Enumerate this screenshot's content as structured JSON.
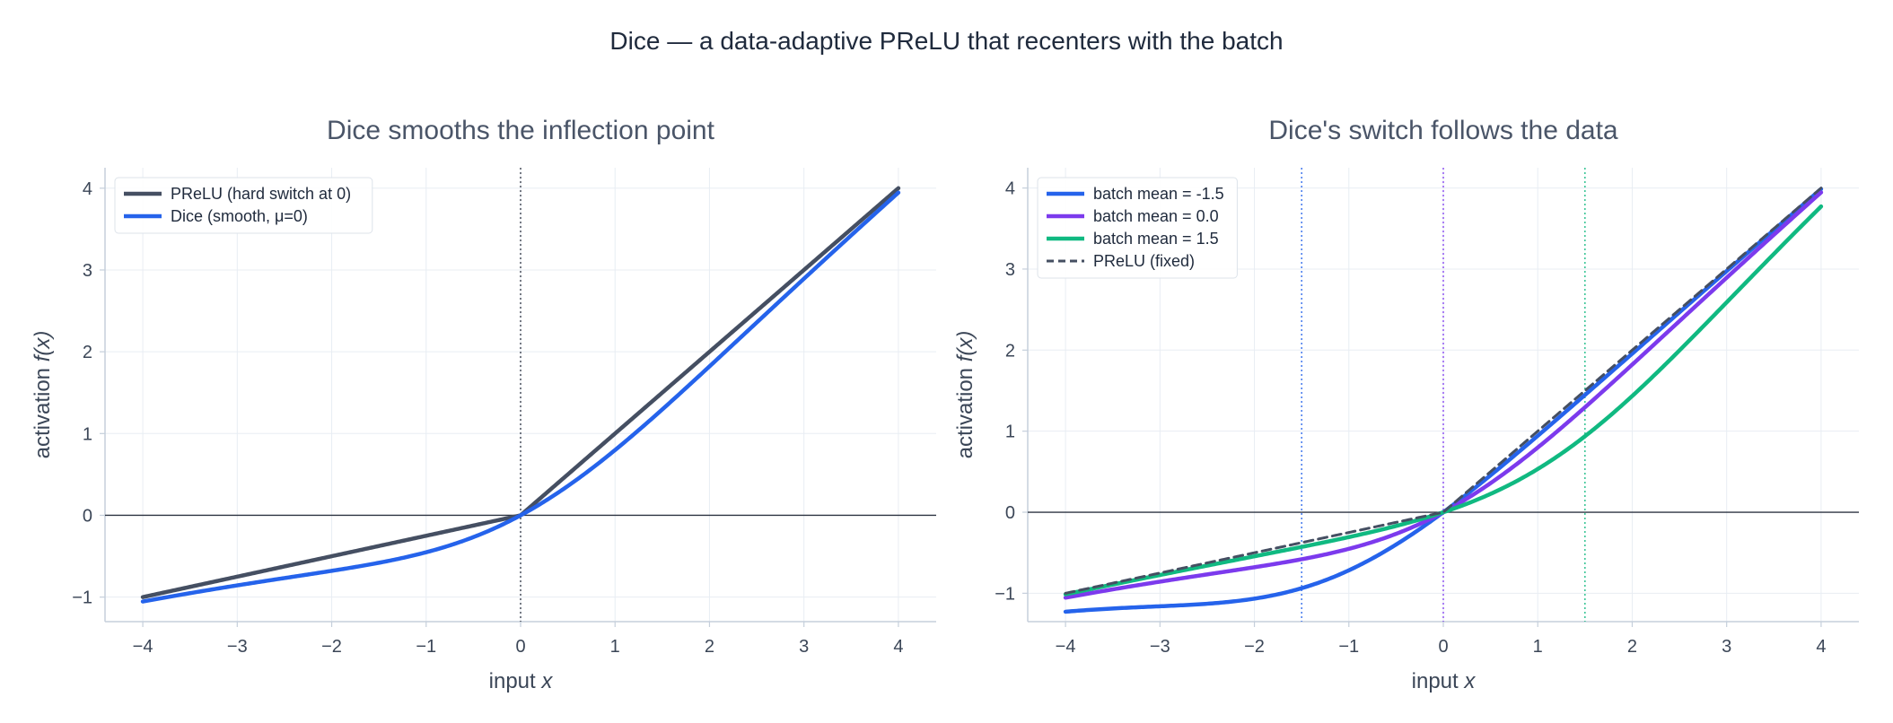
{
  "suptitle": "Dice — a data-adaptive PReLU that recenters with the batch",
  "colors": {
    "prelu": "#454f62",
    "dice": "#2563eb",
    "mean_neg": "#2563eb",
    "mean_zero": "#7c3aed",
    "mean_pos": "#10b981",
    "grid": "#e8edf3",
    "axis": "#c5cfdb",
    "zero_line": "#2d3442"
  },
  "chart_data": [
    {
      "type": "line",
      "title": "Dice smooths the inflection point",
      "xlabel_text": "input",
      "xlabel_var": "x",
      "ylabel_text": "activation",
      "ylabel_var": "f(x)",
      "xlim": [
        -4.4,
        4.4
      ],
      "ylim": [
        -1.3,
        4.25
      ],
      "xticks": [
        -4,
        -3,
        -2,
        -1,
        0,
        1,
        2,
        3,
        4
      ],
      "yticks": [
        -1,
        0,
        1,
        2,
        3,
        4
      ],
      "xtick_labels": [
        "−4",
        "−3",
        "−2",
        "−1",
        "0",
        "1",
        "2",
        "3",
        "4"
      ],
      "ytick_labels": [
        "−1",
        "0",
        "1",
        "2",
        "3",
        "4"
      ],
      "grid": true,
      "legend_position": "top-left",
      "vlines": [
        {
          "x": 0,
          "color": "#2d3442"
        }
      ],
      "series": [
        {
          "name": "PReLU (hard switch at 0)",
          "kind": "prelu",
          "alpha": 0.25,
          "color": "#454f62",
          "dash": false
        },
        {
          "name": "Dice (smooth, μ=0)",
          "kind": "dice",
          "alpha": 0.25,
          "mean": 0,
          "scale": 1,
          "color": "#2563eb",
          "dash": false
        }
      ]
    },
    {
      "type": "line",
      "title": "Dice's switch follows the data",
      "xlabel_text": "input",
      "xlabel_var": "x",
      "ylabel_text": "activation",
      "ylabel_var": "f(x)",
      "xlim": [
        -4.4,
        4.4
      ],
      "ylim": [
        -1.35,
        4.25
      ],
      "xticks": [
        -4,
        -3,
        -2,
        -1,
        0,
        1,
        2,
        3,
        4
      ],
      "yticks": [
        -1,
        0,
        1,
        2,
        3,
        4
      ],
      "xtick_labels": [
        "−4",
        "−3",
        "−2",
        "−1",
        "0",
        "1",
        "2",
        "3",
        "4"
      ],
      "ytick_labels": [
        "−1",
        "0",
        "1",
        "2",
        "3",
        "4"
      ],
      "grid": true,
      "legend_position": "top-left",
      "vlines": [
        {
          "x": -1.5,
          "color": "#2563eb"
        },
        {
          "x": 0,
          "color": "#7c3aed"
        },
        {
          "x": 1.5,
          "color": "#10b981"
        }
      ],
      "series": [
        {
          "name": "batch mean = -1.5",
          "kind": "dice",
          "alpha": 0.25,
          "mean": -1.5,
          "scale": 1,
          "color": "#2563eb",
          "dash": false
        },
        {
          "name": "batch mean = 0.0",
          "kind": "dice",
          "alpha": 0.25,
          "mean": 0,
          "scale": 1,
          "color": "#7c3aed",
          "dash": false
        },
        {
          "name": "batch mean = 1.5",
          "kind": "dice",
          "alpha": 0.25,
          "mean": 1.5,
          "scale": 1,
          "color": "#10b981",
          "dash": false
        },
        {
          "name": "PReLU (fixed)",
          "kind": "prelu",
          "alpha": 0.25,
          "color": "#454f62",
          "dash": true
        }
      ]
    }
  ]
}
